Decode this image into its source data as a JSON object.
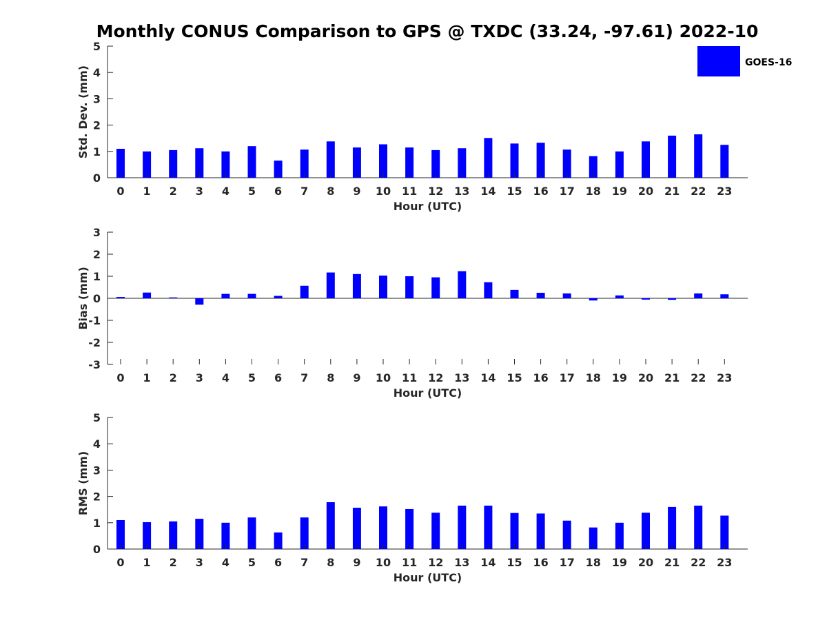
{
  "title": "Monthly CONUS Comparison to GPS @ TXDC (33.24, -97.61) 2022-10",
  "accent_color": "#0000ff",
  "legend": {
    "label": "GOES-16",
    "placement": "top-right"
  },
  "chart_data": [
    {
      "type": "bar",
      "xlabel": "Hour (UTC)",
      "ylabel": "Std. Dev. (mm)",
      "ylim": [
        0,
        5
      ],
      "yticks": [
        0,
        1,
        2,
        3,
        4,
        5
      ],
      "categories": [
        "0",
        "1",
        "2",
        "3",
        "4",
        "5",
        "6",
        "7",
        "8",
        "9",
        "10",
        "11",
        "12",
        "13",
        "14",
        "15",
        "16",
        "17",
        "18",
        "19",
        "20",
        "21",
        "22",
        "23"
      ],
      "series": [
        {
          "name": "GOES-16",
          "values": [
            1.1,
            1.0,
            1.05,
            1.12,
            1.0,
            1.2,
            0.65,
            1.07,
            1.38,
            1.15,
            1.27,
            1.15,
            1.05,
            1.12,
            1.51,
            1.3,
            1.33,
            1.07,
            0.82,
            1.0,
            1.38,
            1.6,
            1.65,
            1.25
          ]
        }
      ],
      "grid": false
    },
    {
      "type": "bar",
      "xlabel": "Hour (UTC)",
      "ylabel": "Bias (mm)",
      "ylim": [
        -3,
        3
      ],
      "yticks": [
        -3,
        -2,
        -1,
        0,
        1,
        2,
        3
      ],
      "categories": [
        "0",
        "1",
        "2",
        "3",
        "4",
        "5",
        "6",
        "7",
        "8",
        "9",
        "10",
        "11",
        "12",
        "13",
        "14",
        "15",
        "16",
        "17",
        "18",
        "19",
        "20",
        "21",
        "22",
        "23"
      ],
      "series": [
        {
          "name": "GOES-16",
          "values": [
            0.06,
            0.26,
            0.04,
            -0.29,
            0.2,
            0.2,
            0.11,
            0.57,
            1.17,
            1.1,
            1.03,
            1.0,
            0.95,
            1.23,
            0.73,
            0.38,
            0.25,
            0.22,
            -0.1,
            0.13,
            -0.06,
            -0.07,
            0.22,
            0.18
          ]
        }
      ],
      "grid": false
    },
    {
      "type": "bar",
      "xlabel": "Hour (UTC)",
      "ylabel": "RMS (mm)",
      "ylim": [
        0,
        5
      ],
      "yticks": [
        0,
        1,
        2,
        3,
        4,
        5
      ],
      "categories": [
        "0",
        "1",
        "2",
        "3",
        "4",
        "5",
        "6",
        "7",
        "8",
        "9",
        "10",
        "11",
        "12",
        "13",
        "14",
        "15",
        "16",
        "17",
        "18",
        "19",
        "20",
        "21",
        "22",
        "23"
      ],
      "series": [
        {
          "name": "GOES-16",
          "values": [
            1.1,
            1.02,
            1.05,
            1.15,
            1.0,
            1.2,
            0.63,
            1.2,
            1.78,
            1.57,
            1.62,
            1.52,
            1.38,
            1.65,
            1.65,
            1.37,
            1.35,
            1.08,
            0.82,
            1.0,
            1.38,
            1.6,
            1.65,
            1.27
          ]
        }
      ],
      "grid": false
    }
  ]
}
